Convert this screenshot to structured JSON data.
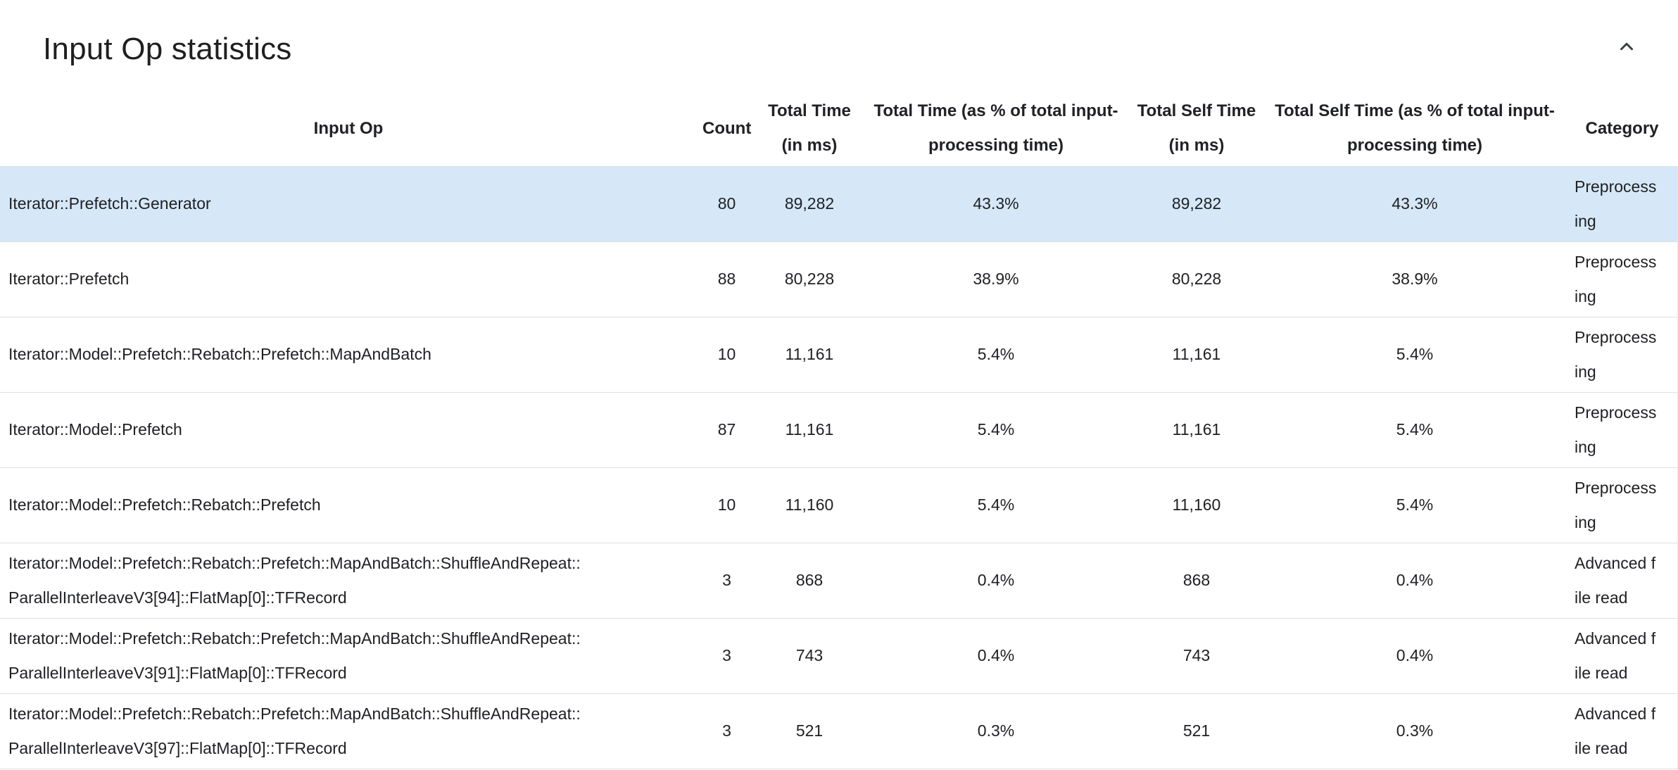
{
  "panel": {
    "title": "Input Op statistics",
    "collapse_icon": "chevron-up-icon"
  },
  "table": {
    "highlight_color": "#d6e8f8",
    "headers": [
      "Input Op",
      "Count",
      "Total Time (in ms)",
      "Total Time (as % of total input-processing time)",
      "Total Self Time (in ms)",
      "Total Self Time (as % of total input-processing time)",
      "Category"
    ],
    "rows": [
      {
        "op": "Iterator::Prefetch::Generator",
        "count": "80",
        "total_time_ms": "89,282",
        "total_time_pct": "43.3%",
        "total_self_time_ms": "89,282",
        "total_self_time_pct": "43.3%",
        "category": "Preprocessing",
        "highlighted": true
      },
      {
        "op": "Iterator::Prefetch",
        "count": "88",
        "total_time_ms": "80,228",
        "total_time_pct": "38.9%",
        "total_self_time_ms": "80,228",
        "total_self_time_pct": "38.9%",
        "category": "Preprocessing",
        "highlighted": false
      },
      {
        "op": "Iterator::Model::Prefetch::Rebatch::Prefetch::MapAndBatch",
        "count": "10",
        "total_time_ms": "11,161",
        "total_time_pct": "5.4%",
        "total_self_time_ms": "11,161",
        "total_self_time_pct": "5.4%",
        "category": "Preprocessing",
        "highlighted": false
      },
      {
        "op": "Iterator::Model::Prefetch",
        "count": "87",
        "total_time_ms": "11,161",
        "total_time_pct": "5.4%",
        "total_self_time_ms": "11,161",
        "total_self_time_pct": "5.4%",
        "category": "Preprocessing",
        "highlighted": false
      },
      {
        "op": "Iterator::Model::Prefetch::Rebatch::Prefetch",
        "count": "10",
        "total_time_ms": "11,160",
        "total_time_pct": "5.4%",
        "total_self_time_ms": "11,160",
        "total_self_time_pct": "5.4%",
        "category": "Preprocessing",
        "highlighted": false
      },
      {
        "op": "Iterator::Model::Prefetch::Rebatch::Prefetch::MapAndBatch::ShuffleAndRepeat::ParallelInterleaveV3[94]::FlatMap[0]::TFRecord",
        "count": "3",
        "total_time_ms": "868",
        "total_time_pct": "0.4%",
        "total_self_time_ms": "868",
        "total_self_time_pct": "0.4%",
        "category": "Advanced file read",
        "highlighted": false
      },
      {
        "op": "Iterator::Model::Prefetch::Rebatch::Prefetch::MapAndBatch::ShuffleAndRepeat::ParallelInterleaveV3[91]::FlatMap[0]::TFRecord",
        "count": "3",
        "total_time_ms": "743",
        "total_time_pct": "0.4%",
        "total_self_time_ms": "743",
        "total_self_time_pct": "0.4%",
        "category": "Advanced file read",
        "highlighted": false
      },
      {
        "op": "Iterator::Model::Prefetch::Rebatch::Prefetch::MapAndBatch::ShuffleAndRepeat::ParallelInterleaveV3[97]::FlatMap[0]::TFRecord",
        "count": "3",
        "total_time_ms": "521",
        "total_time_pct": "0.3%",
        "total_self_time_ms": "521",
        "total_self_time_pct": "0.3%",
        "category": "Advanced file read",
        "highlighted": false
      }
    ]
  }
}
